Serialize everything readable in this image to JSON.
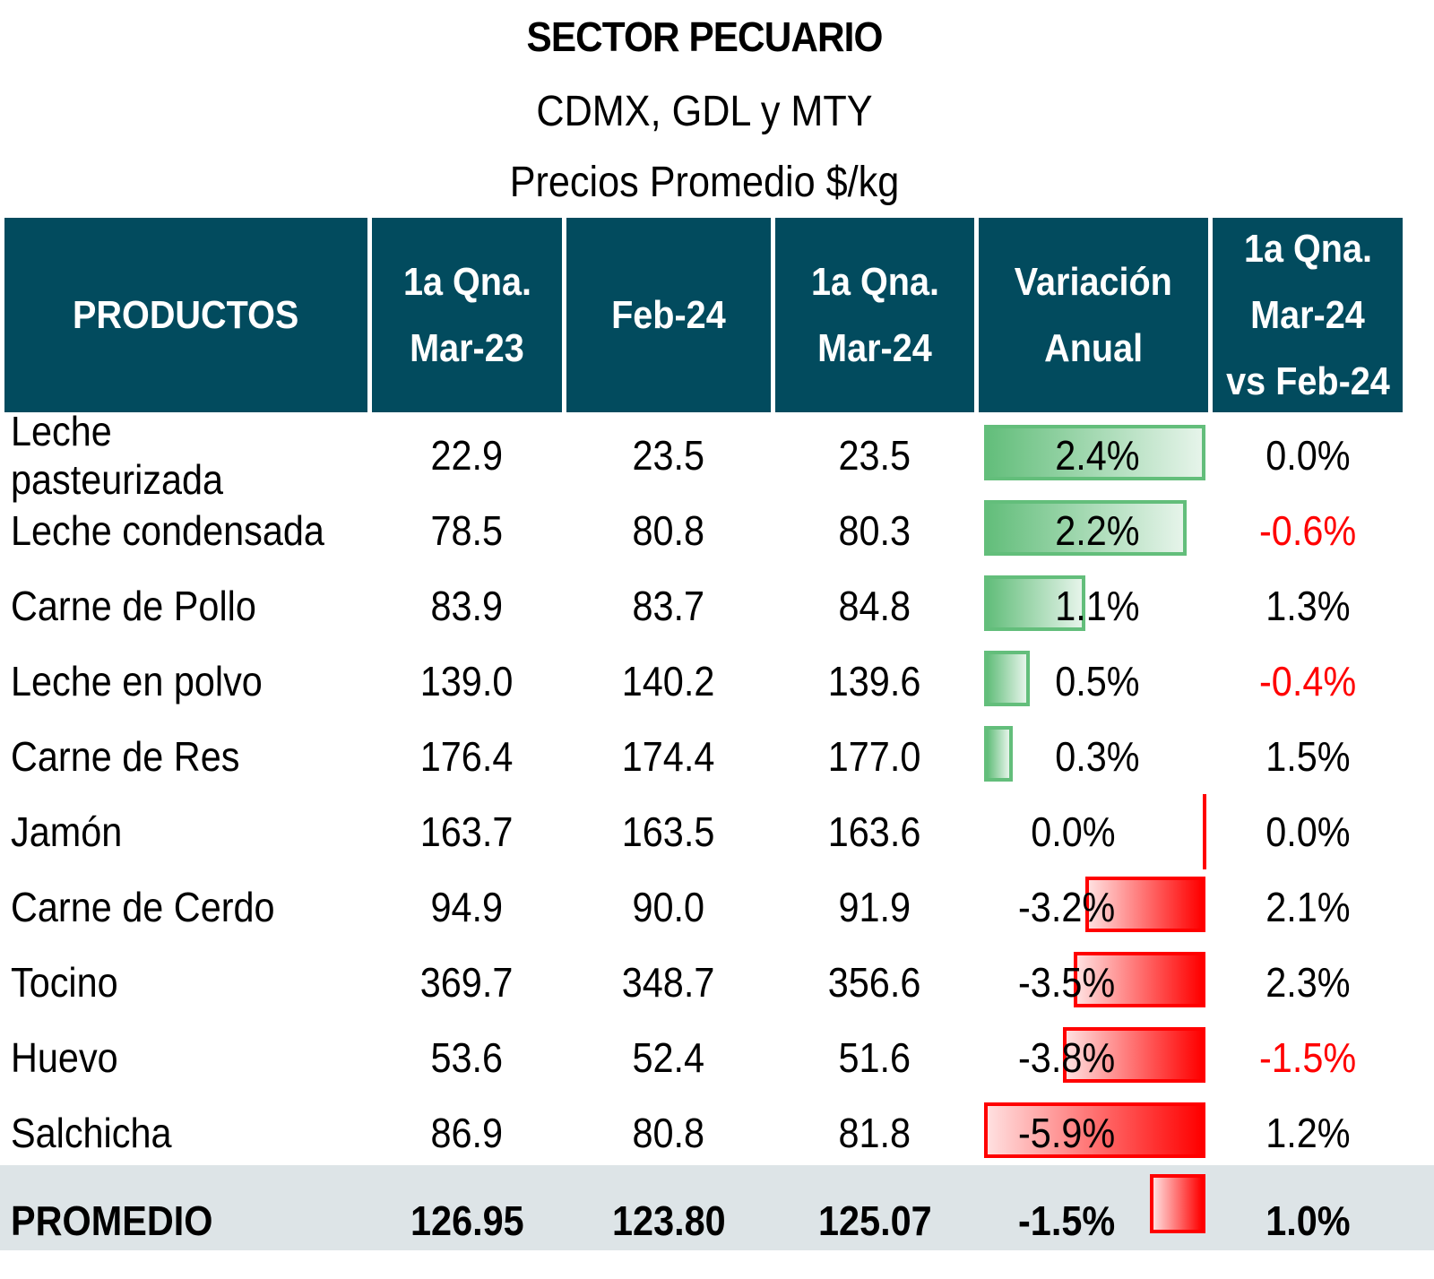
{
  "title": {
    "main": "SECTOR PECUARIO",
    "region": "CDMX, GDL y MTY",
    "unit": "Precios Promedio $/kg"
  },
  "colors": {
    "header_bg": "#024B5E",
    "positive_bar": "#63BE7B",
    "negative_bar": "#FF0000",
    "negative_text": "#FF0000",
    "total_row_bg": "#DDE4E7"
  },
  "table": {
    "headers": {
      "products": "PRODUCTOS",
      "col_a_line1": "1a Qna.",
      "col_a_line2": "Mar-23",
      "col_b": "Feb-24",
      "col_c_line1": "1a Qna.",
      "col_c_line2": "Mar-24",
      "col_var_line1": "Variación",
      "col_var_line2": "Anual",
      "col_mom_line1": "1a Qna.",
      "col_mom_line2": "Mar-24",
      "col_mom_line3": "vs Feb-24"
    },
    "rows": [
      {
        "product": "Leche pasteurizada",
        "mar23": "22.9",
        "feb24": "23.5",
        "mar24": "23.5",
        "var_anual": "2.4%",
        "var_anual_value": 2.4,
        "vs_feb": "0.0%",
        "vs_feb_value": 0.0
      },
      {
        "product": "Leche condensada",
        "mar23": "78.5",
        "feb24": "80.8",
        "mar24": "80.3",
        "var_anual": "2.2%",
        "var_anual_value": 2.2,
        "vs_feb": "-0.6%",
        "vs_feb_value": -0.6
      },
      {
        "product": "Carne de Pollo",
        "mar23": "83.9",
        "feb24": "83.7",
        "mar24": "84.8",
        "var_anual": "1.1%",
        "var_anual_value": 1.1,
        "vs_feb": "1.3%",
        "vs_feb_value": 1.3
      },
      {
        "product": "Leche en polvo",
        "mar23": "139.0",
        "feb24": "140.2",
        "mar24": "139.6",
        "var_anual": "0.5%",
        "var_anual_value": 0.5,
        "vs_feb": "-0.4%",
        "vs_feb_value": -0.4
      },
      {
        "product": "Carne de Res",
        "mar23": "176.4",
        "feb24": "174.4",
        "mar24": "177.0",
        "var_anual": "0.3%",
        "var_anual_value": 0.3,
        "vs_feb": "1.5%",
        "vs_feb_value": 1.5
      },
      {
        "product": "Jamón",
        "mar23": "163.7",
        "feb24": "163.5",
        "mar24": "163.6",
        "var_anual": "0.0%",
        "var_anual_value": 0.0,
        "vs_feb": "0.0%",
        "vs_feb_value": 0.0
      },
      {
        "product": "Carne de Cerdo",
        "mar23": "94.9",
        "feb24": "90.0",
        "mar24": "91.9",
        "var_anual": "-3.2%",
        "var_anual_value": -3.2,
        "vs_feb": "2.1%",
        "vs_feb_value": 2.1
      },
      {
        "product": "Tocino",
        "mar23": "369.7",
        "feb24": "348.7",
        "mar24": "356.6",
        "var_anual": "-3.5%",
        "var_anual_value": -3.5,
        "vs_feb": "2.3%",
        "vs_feb_value": 2.3
      },
      {
        "product": "Huevo",
        "mar23": "53.6",
        "feb24": "52.4",
        "mar24": "51.6",
        "var_anual": "-3.8%",
        "var_anual_value": -3.8,
        "vs_feb": "-1.5%",
        "vs_feb_value": -1.5
      },
      {
        "product": "Salchicha",
        "mar23": "86.9",
        "feb24": "80.8",
        "mar24": "81.8",
        "var_anual": "-5.9%",
        "var_anual_value": -5.9,
        "vs_feb": "1.2%",
        "vs_feb_value": 1.2
      }
    ],
    "total": {
      "product": "PROMEDIO",
      "mar23": "126.95",
      "feb24": "123.80",
      "mar24": "125.07",
      "var_anual": "-1.5%",
      "var_anual_value": -1.5,
      "vs_feb": "1.0%",
      "vs_feb_value": 1.0
    }
  }
}
